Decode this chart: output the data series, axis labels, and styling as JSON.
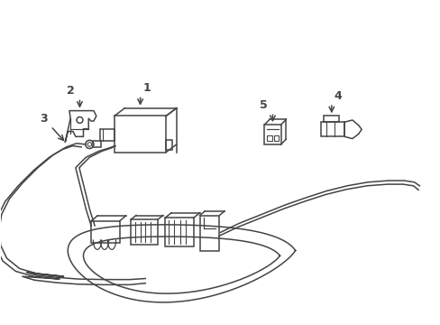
{
  "background_color": "#ffffff",
  "line_color": "#444444",
  "line_width": 1.1,
  "label_fontsize": 9,
  "figsize": [
    4.89,
    3.6
  ],
  "dpi": 100,
  "xlim": [
    0,
    8.5
  ],
  "ylim": [
    0,
    6.0
  ]
}
